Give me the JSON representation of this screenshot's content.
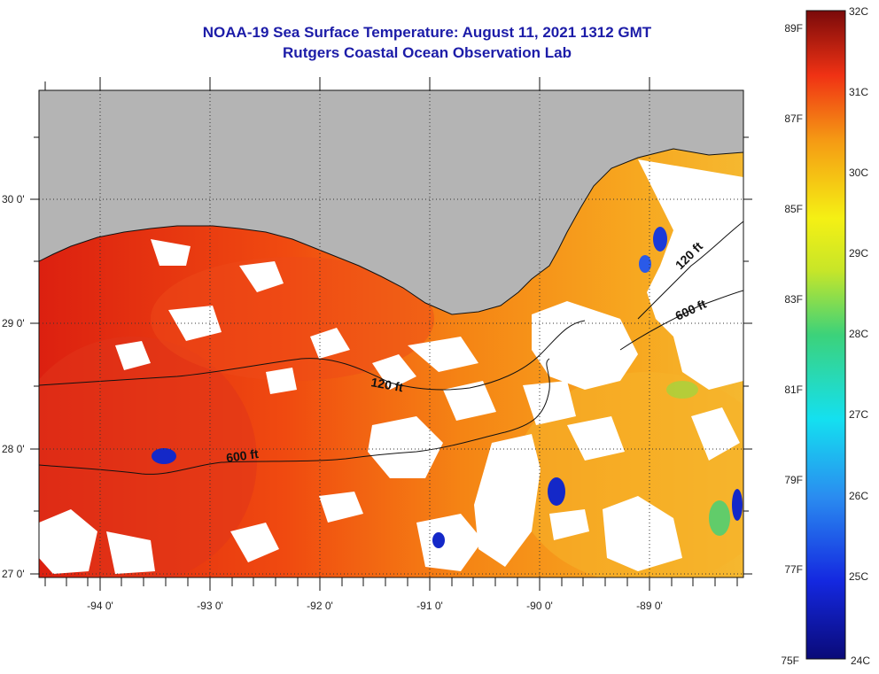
{
  "title": {
    "line1": "NOAA-19 Sea Surface Temperature:  August 11, 2021 1312 GMT",
    "line2": "Rutgers Coastal Ocean Observation Lab"
  },
  "axes": {
    "lon_labels": [
      "-94 0'",
      "-93 0'",
      "-92 0'",
      "-91 0'",
      "-90 0'",
      "-89 0'"
    ],
    "lat_labels": [
      "30 0'",
      "29 0'",
      "28 0'",
      "27 0'"
    ],
    "lon_range": [
      -94.5,
      -88.3
    ],
    "lat_range": [
      26.97,
      30.84
    ]
  },
  "contours": [
    {
      "label": "120 ft"
    },
    {
      "label": "600 ft"
    },
    {
      "label": "120 ft"
    },
    {
      "label": "600 ft"
    }
  ],
  "colorbar": {
    "celsius_labels": [
      "32C",
      "31C",
      "30C",
      "29C",
      "28C",
      "27C",
      "26C",
      "25C",
      "24C"
    ],
    "fahrenheit_labels": [
      "89F",
      "87F",
      "85F",
      "83F",
      "81F",
      "79F",
      "77F",
      "75F"
    ],
    "celsius_range": [
      24,
      32
    ]
  },
  "colors": {
    "title": "#1c1ca8",
    "land": "#b4b4b4",
    "sst_warm": "#e63214",
    "sst_mid": "#f57814",
    "sst_cool": "#ffb400",
    "cloud": "#ffffff",
    "cold_spot": "#1428c8"
  }
}
